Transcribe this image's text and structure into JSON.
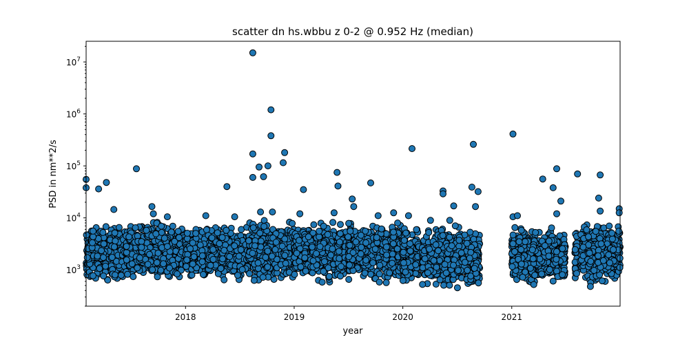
{
  "chart_data": {
    "type": "scatter",
    "title": "scatter dn hs.wbbu z 0-2 @ 0.952 Hz (median)",
    "xlabel": "year",
    "ylabel": "PSD in nm**2/s",
    "ylog": true,
    "xlim": [
      "2017-02-01",
      "2021-12-31"
    ],
    "ylim": [
      200,
      25000000
    ],
    "grid": false,
    "x_ticks": [
      {
        "value": "2018-01-01",
        "label": "2018"
      },
      {
        "value": "2019-01-01",
        "label": "2019"
      },
      {
        "value": "2020-01-01",
        "label": "2020"
      },
      {
        "value": "2021-01-01",
        "label": "2021"
      }
    ],
    "y_ticks": [
      {
        "value": 1000,
        "base": "10",
        "exp": "3"
      },
      {
        "value": 10000,
        "base": "10",
        "exp": "4"
      },
      {
        "value": 100000,
        "base": "10",
        "exp": "5"
      },
      {
        "value": 1000000,
        "base": "10",
        "exp": "6"
      },
      {
        "value": 10000000,
        "base": "10",
        "exp": "7"
      }
    ],
    "series": [
      {
        "color": "#1f77b4",
        "edgecolor": "#000000",
        "points": [
          [
            "2017-02-01",
            55000
          ],
          [
            "2017-02-01",
            38000
          ],
          [
            "2017-03-15",
            36000
          ],
          [
            "2017-04-10",
            48000
          ],
          [
            "2017-05-05",
            14500
          ],
          [
            "2017-07-20",
            88000
          ],
          [
            "2017-09-10",
            16500
          ],
          [
            "2017-09-15",
            12000
          ],
          [
            "2017-11-01",
            10500
          ],
          [
            "2018-03-10",
            11000
          ],
          [
            "2018-05-20",
            40000
          ],
          [
            "2018-06-15",
            10500
          ],
          [
            "2018-08-15",
            15000000
          ],
          [
            "2018-08-15",
            170000
          ],
          [
            "2018-08-15",
            60000
          ],
          [
            "2018-09-05",
            95000
          ],
          [
            "2018-09-10",
            13000
          ],
          [
            "2018-09-20",
            62000
          ],
          [
            "2018-10-05",
            100000
          ],
          [
            "2018-10-15",
            1200000
          ],
          [
            "2018-10-15",
            380000
          ],
          [
            "2018-10-20",
            13000
          ],
          [
            "2018-11-25",
            115000
          ],
          [
            "2018-11-30",
            180000
          ],
          [
            "2019-02-01",
            35000
          ],
          [
            "2019-01-20",
            12000
          ],
          [
            "2019-05-15",
            12500
          ],
          [
            "2019-05-25",
            75000
          ],
          [
            "2019-05-28",
            41000
          ],
          [
            "2019-07-15",
            23000
          ],
          [
            "2019-07-20",
            16500
          ],
          [
            "2019-09-15",
            47000
          ],
          [
            "2019-10-10",
            11000
          ],
          [
            "2019-12-01",
            12500
          ],
          [
            "2020-01-20",
            11000
          ],
          [
            "2020-02-01",
            215000
          ],
          [
            "2020-05-15",
            33000
          ],
          [
            "2020-05-15",
            29000
          ],
          [
            "2020-06-20",
            17000
          ],
          [
            "2020-08-20",
            39000
          ],
          [
            "2020-08-25",
            260000
          ],
          [
            "2020-09-01",
            16500
          ],
          [
            "2020-09-10",
            32000
          ],
          [
            "2021-01-05",
            410000
          ],
          [
            "2021-01-05",
            10500
          ],
          [
            "2021-01-20",
            11000
          ],
          [
            "2021-04-15",
            56000
          ],
          [
            "2021-05-20",
            38000
          ],
          [
            "2021-06-01",
            88000
          ],
          [
            "2021-06-15",
            21000
          ],
          [
            "2021-06-01",
            12000
          ],
          [
            "2021-08-10",
            70000
          ],
          [
            "2021-10-25",
            67000
          ],
          [
            "2021-10-20",
            24000
          ],
          [
            "2021-10-25",
            13500
          ],
          [
            "2021-12-28",
            15000
          ],
          [
            "2021-12-28",
            12500
          ]
        ],
        "clusters": [
          {
            "start": "2017-02-01",
            "end": "2017-06-15",
            "min": 520,
            "max": 9000
          },
          {
            "start": "2017-06-15",
            "end": "2017-12-31",
            "min": 480,
            "max": 10000
          },
          {
            "start": "2018-01-01",
            "end": "2018-07-31",
            "min": 540,
            "max": 8500
          },
          {
            "start": "2018-08-01",
            "end": "2018-12-31",
            "min": 450,
            "max": 11000
          },
          {
            "start": "2019-01-01",
            "end": "2019-06-30",
            "min": 470,
            "max": 10000
          },
          {
            "start": "2019-07-01",
            "end": "2019-12-31",
            "min": 520,
            "max": 9500
          },
          {
            "start": "2020-01-01",
            "end": "2020-02-25",
            "min": 400,
            "max": 8000
          },
          {
            "start": "2020-03-05",
            "end": "2020-09-15",
            "min": 340,
            "max": 9500
          },
          {
            "start": "2021-01-01",
            "end": "2021-06-30",
            "min": 450,
            "max": 7500
          },
          {
            "start": "2021-08-01",
            "end": "2021-12-31",
            "min": 430,
            "max": 10000
          }
        ]
      }
    ]
  }
}
